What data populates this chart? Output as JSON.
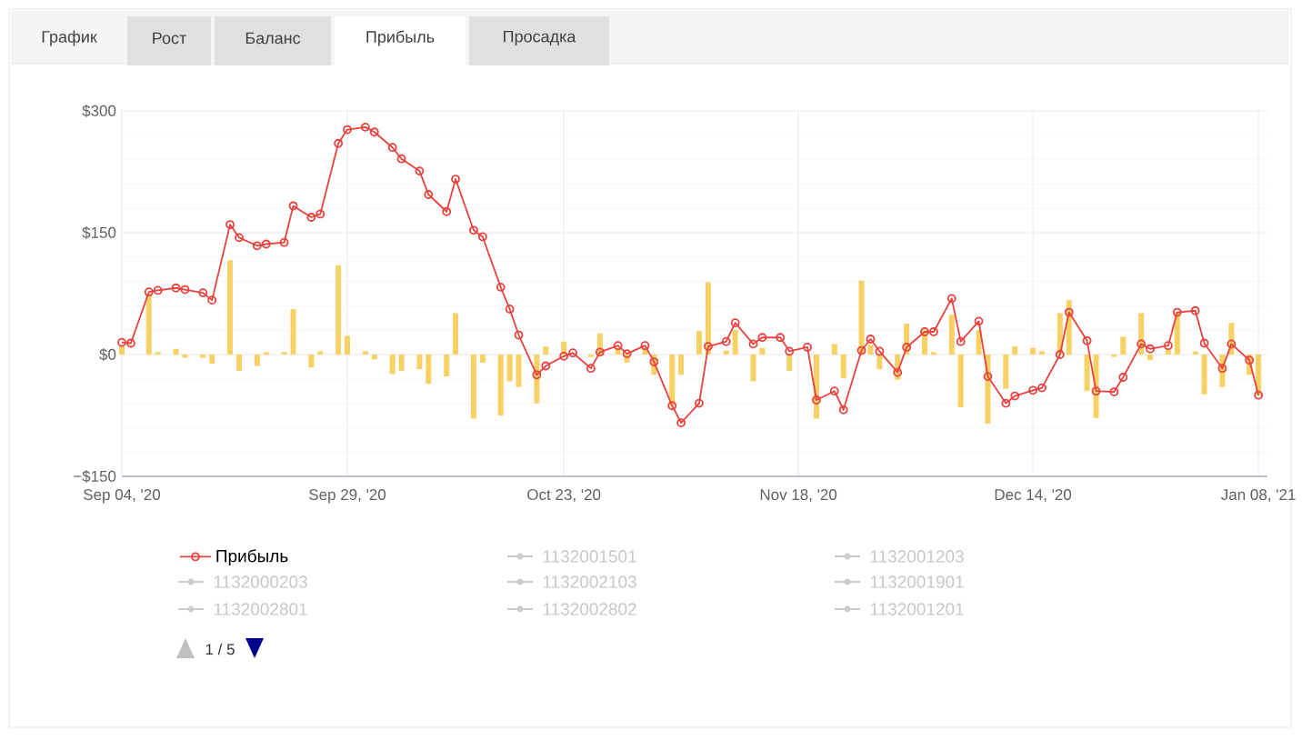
{
  "chart_data": {
    "type": "line",
    "x": [
      "2020-09-04",
      "2020-09-05",
      "2020-09-07",
      "2020-09-08",
      "2020-09-10",
      "2020-09-11",
      "2020-09-13",
      "2020-09-14",
      "2020-09-16",
      "2020-09-17",
      "2020-09-19",
      "2020-09-20",
      "2020-09-22",
      "2020-09-23",
      "2020-09-25",
      "2020-09-26",
      "2020-09-28",
      "2020-09-29",
      "2020-10-01",
      "2020-10-02",
      "2020-10-04",
      "2020-10-05",
      "2020-10-07",
      "2020-10-08",
      "2020-10-10",
      "2020-10-11",
      "2020-10-13",
      "2020-10-14",
      "2020-10-16",
      "2020-10-17",
      "2020-10-18",
      "2020-10-20",
      "2020-10-21",
      "2020-10-23",
      "2020-10-24",
      "2020-10-26",
      "2020-10-27",
      "2020-10-29",
      "2020-10-30",
      "2020-11-01",
      "2020-11-02",
      "2020-11-04",
      "2020-11-05",
      "2020-11-07",
      "2020-11-08",
      "2020-11-10",
      "2020-11-11",
      "2020-11-13",
      "2020-11-14",
      "2020-11-16",
      "2020-11-17",
      "2020-11-19",
      "2020-11-20",
      "2020-11-22",
      "2020-11-23",
      "2020-11-25",
      "2020-11-26",
      "2020-11-27",
      "2020-11-29",
      "2020-11-30",
      "2020-12-02",
      "2020-12-03",
      "2020-12-05",
      "2020-12-06",
      "2020-12-08",
      "2020-12-09",
      "2020-12-11",
      "2020-12-12",
      "2020-12-14",
      "2020-12-15",
      "2020-12-17",
      "2020-12-18",
      "2020-12-20",
      "2020-12-21",
      "2020-12-23",
      "2020-12-24",
      "2020-12-26",
      "2020-12-27",
      "2020-12-29",
      "2020-12-30",
      "2021-01-01",
      "2021-01-02",
      "2021-01-04",
      "2021-01-05",
      "2021-01-07",
      "2021-01-08"
    ],
    "series": [
      {
        "type": "bar",
        "color": "#f7d163",
        "values": [
          10,
          0,
          75,
          3,
          7,
          -4,
          -4,
          -11,
          116,
          -20,
          -14,
          3,
          3,
          56,
          -16,
          4,
          110,
          23,
          4,
          -6,
          -24,
          -20,
          -18,
          -36,
          -27,
          51,
          -79,
          -10,
          -75,
          -33,
          -40,
          -60,
          10,
          16,
          0,
          -3,
          26,
          8,
          -10,
          8,
          -25,
          -63,
          -25,
          29,
          89,
          5,
          30,
          -33,
          8,
          0,
          -20,
          0,
          -79,
          13,
          -29,
          91,
          12,
          -18,
          -31,
          38,
          30,
          3,
          49,
          -65,
          30,
          -85,
          -42,
          10,
          8,
          4,
          51,
          67,
          -45,
          -78,
          -3,
          22,
          51,
          -7,
          6,
          52,
          4,
          -49,
          -40,
          39,
          -25,
          -50
        ]
      },
      {
        "name": "Прибыль",
        "color": "#e8423f",
        "values": [
          15,
          14,
          77,
          79,
          82,
          80,
          76,
          67,
          160,
          144,
          134,
          136,
          138,
          183,
          169,
          173,
          260,
          277,
          280,
          274,
          255,
          241,
          226,
          197,
          176,
          216,
          153,
          145,
          83,
          56,
          24,
          -25,
          -14,
          -2,
          2,
          -17,
          3,
          11,
          1,
          11,
          -9,
          -63,
          -84,
          -60,
          10,
          16,
          39,
          13,
          21,
          21,
          4,
          9,
          -56,
          -45,
          -68,
          5,
          19,
          4,
          -22,
          9,
          28,
          28,
          69,
          16,
          41,
          -27,
          -60,
          -51,
          -44,
          -41,
          0,
          52,
          17,
          -45,
          -46,
          -28,
          13,
          7,
          11,
          52,
          54,
          14,
          -17,
          13,
          -7,
          -50
        ]
      }
    ],
    "xlim": [
      "2020-09-04",
      "2021-01-09"
    ],
    "xticks": [
      {
        "value": "2020-09-04",
        "label": "Sep 04, '20"
      },
      {
        "value": "2020-09-29",
        "label": "Sep 29, '20"
      },
      {
        "value": "2020-10-23",
        "label": "Oct 23, '20"
      },
      {
        "value": "2020-11-18",
        "label": "Nov 18, '20"
      },
      {
        "value": "2020-12-14",
        "label": "Dec 14, '20"
      },
      {
        "value": "2021-01-08",
        "label": "Jan 08, '21"
      }
    ],
    "ylim": [
      -150,
      300
    ],
    "yticks": [
      {
        "value": -150,
        "label": "−$150"
      },
      {
        "value": 0,
        "label": "$0"
      },
      {
        "value": 150,
        "label": "$150"
      },
      {
        "value": 300,
        "label": "$300"
      }
    ],
    "grid": true,
    "legend": "bottom",
    "marker": "circle",
    "annotations": [
      "График",
      "Рост",
      "Баланс",
      "Прибыль",
      "Просадка",
      "1132001501",
      "1132001203",
      "1132000203",
      "1132002103",
      "1132001901",
      "1132002801",
      "1132002802",
      "1132001201",
      "1 / 5"
    ]
  }
}
